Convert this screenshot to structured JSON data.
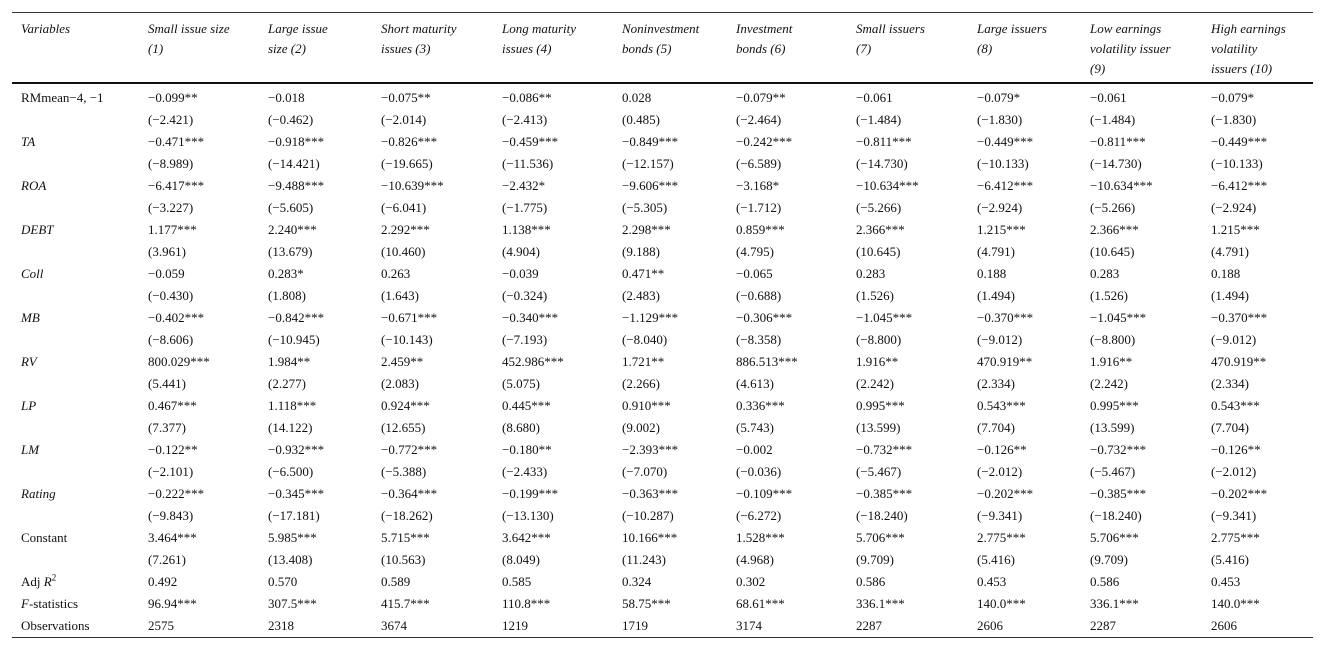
{
  "table": {
    "headers": [
      [
        "Variables"
      ],
      [
        "Small issue size",
        "(1)"
      ],
      [
        "Large issue",
        "size (2)"
      ],
      [
        "Short maturity",
        "issues (3)"
      ],
      [
        "Long maturity",
        "issues (4)"
      ],
      [
        "Noninvestment",
        "bonds (5)"
      ],
      [
        "Investment",
        "bonds (6)"
      ],
      [
        "Small issuers",
        "(7)"
      ],
      [
        "Large issuers",
        "(8)"
      ],
      [
        "Low earnings",
        "volatility issuer",
        "(9)"
      ],
      [
        "High earnings",
        "volatility",
        "issuers (10)"
      ]
    ],
    "rows": [
      {
        "variable": [
          {
            "text": "RMmean−4, −1"
          }
        ],
        "values": [
          "−0.099**",
          "−0.018",
          "−0.075**",
          "−0.086**",
          "0.028",
          "−0.079**",
          "−0.061",
          "−0.079*",
          "−0.061",
          "−0.079*"
        ],
        "tstats": [
          "(−2.421)",
          "(−0.462)",
          "(−2.014)",
          "(−2.413)",
          "(0.485)",
          "(−2.464)",
          "(−1.484)",
          "(−1.830)",
          "(−1.484)",
          "(−1.830)"
        ]
      },
      {
        "variable": [
          {
            "text": "TA",
            "style": "italic"
          }
        ],
        "values": [
          "−0.471***",
          "−0.918***",
          "−0.826***",
          "−0.459***",
          "−0.849***",
          "−0.242***",
          "−0.811***",
          "−0.449***",
          "−0.811***",
          "−0.449***"
        ],
        "tstats": [
          "(−8.989)",
          "(−14.421)",
          "(−19.665)",
          "(−11.536)",
          "(−12.157)",
          "(−6.589)",
          "(−14.730)",
          "(−10.133)",
          "(−14.730)",
          "(−10.133)"
        ]
      },
      {
        "variable": [
          {
            "text": "ROA",
            "style": "italic"
          }
        ],
        "values": [
          "−6.417***",
          "−9.488***",
          "−10.639***",
          "−2.432*",
          "−9.606***",
          "−3.168*",
          "−10.634***",
          "−6.412***",
          "−10.634***",
          "−6.412***"
        ],
        "tstats": [
          "(−3.227)",
          "(−5.605)",
          "(−6.041)",
          "(−1.775)",
          "(−5.305)",
          "(−1.712)",
          "(−5.266)",
          "(−2.924)",
          "(−5.266)",
          "(−2.924)"
        ]
      },
      {
        "variable": [
          {
            "text": "DEBT",
            "style": "italic"
          }
        ],
        "values": [
          "1.177***",
          "2.240***",
          "2.292***",
          "1.138***",
          "2.298***",
          "0.859***",
          "2.366***",
          "1.215***",
          "2.366***",
          "1.215***"
        ],
        "tstats": [
          "(3.961)",
          "(13.679)",
          "(10.460)",
          "(4.904)",
          "(9.188)",
          "(4.795)",
          "(10.645)",
          "(4.791)",
          "(10.645)",
          "(4.791)"
        ]
      },
      {
        "variable": [
          {
            "text": "Coll",
            "style": "italic"
          }
        ],
        "values": [
          "−0.059",
          "0.283*",
          "0.263",
          "−0.039",
          "0.471**",
          "−0.065",
          "0.283",
          "0.188",
          "0.283",
          "0.188"
        ],
        "tstats": [
          "(−0.430)",
          "(1.808)",
          "(1.643)",
          "(−0.324)",
          "(2.483)",
          "(−0.688)",
          "(1.526)",
          "(1.494)",
          "(1.526)",
          "(1.494)"
        ]
      },
      {
        "variable": [
          {
            "text": "MB",
            "style": "italic"
          }
        ],
        "values": [
          "−0.402***",
          "−0.842***",
          "−0.671***",
          "−0.340***",
          "−1.129***",
          "−0.306***",
          "−1.045***",
          "−0.370***",
          "−1.045***",
          "−0.370***"
        ],
        "tstats": [
          "(−8.606)",
          "(−10.945)",
          "(−10.143)",
          "(−7.193)",
          "(−8.040)",
          "(−8.358)",
          "(−8.800)",
          "(−9.012)",
          "(−8.800)",
          "(−9.012)"
        ]
      },
      {
        "variable": [
          {
            "text": "RV",
            "style": "italic"
          }
        ],
        "values": [
          "800.029***",
          "1.984**",
          "2.459**",
          "452.986***",
          "1.721**",
          "886.513***",
          "1.916**",
          "470.919**",
          "1.916**",
          "470.919**"
        ],
        "tstats": [
          "(5.441)",
          "(2.277)",
          "(2.083)",
          "(5.075)",
          "(2.266)",
          "(4.613)",
          "(2.242)",
          "(2.334)",
          "(2.242)",
          "(2.334)"
        ]
      },
      {
        "variable": [
          {
            "text": "LP",
            "style": "italic"
          }
        ],
        "values": [
          "0.467***",
          "1.118***",
          "0.924***",
          "0.445***",
          "0.910***",
          "0.336***",
          "0.995***",
          "0.543***",
          "0.995***",
          "0.543***"
        ],
        "tstats": [
          "(7.377)",
          "(14.122)",
          "(12.655)",
          "(8.680)",
          "(9.002)",
          "(5.743)",
          "(13.599)",
          "(7.704)",
          "(13.599)",
          "(7.704)"
        ]
      },
      {
        "variable": [
          {
            "text": "LM",
            "style": "italic"
          }
        ],
        "values": [
          "−0.122**",
          "−0.932***",
          "−0.772***",
          "−0.180**",
          "−2.393***",
          "−0.002",
          "−0.732***",
          "−0.126**",
          "−0.732***",
          "−0.126**"
        ],
        "tstats": [
          "(−2.101)",
          "(−6.500)",
          "(−5.388)",
          "(−2.433)",
          "(−7.070)",
          "(−0.036)",
          "(−5.467)",
          "(−2.012)",
          "(−5.467)",
          "(−2.012)"
        ]
      },
      {
        "variable": [
          {
            "text": "Rating",
            "style": "italic"
          }
        ],
        "values": [
          "−0.222***",
          "−0.345***",
          "−0.364***",
          "−0.199***",
          "−0.363***",
          "−0.109***",
          "−0.385***",
          "−0.202***",
          "−0.385***",
          "−0.202***"
        ],
        "tstats": [
          "(−9.843)",
          "(−17.181)",
          "(−18.262)",
          "(−13.130)",
          "(−10.287)",
          "(−6.272)",
          "(−18.240)",
          "(−9.341)",
          "(−18.240)",
          "(−9.341)"
        ]
      },
      {
        "variable": [
          {
            "text": "Constant"
          }
        ],
        "values": [
          "3.464***",
          "5.985***",
          "5.715***",
          "3.642***",
          "10.166***",
          "1.528***",
          "5.706***",
          "2.775***",
          "5.706***",
          "2.775***"
        ],
        "tstats": [
          "(7.261)",
          "(13.408)",
          "(10.563)",
          "(8.049)",
          "(11.243)",
          "(4.968)",
          "(9.709)",
          "(5.416)",
          "(9.709)",
          "(5.416)"
        ]
      },
      {
        "variable": [
          {
            "text": "Adj "
          },
          {
            "text": "R",
            "style": "italic"
          },
          {
            "text": "2",
            "style": "sup"
          }
        ],
        "values": [
          "0.492",
          "0.570",
          "0.589",
          "0.585",
          "0.324",
          "0.302",
          "0.586",
          "0.453",
          "0.586",
          "0.453"
        ]
      },
      {
        "variable": [
          {
            "text": "F",
            "style": "italic"
          },
          {
            "text": "-statistics"
          }
        ],
        "values": [
          "96.94***",
          "307.5***",
          "415.7***",
          "110.8***",
          "58.75***",
          "68.61***",
          "336.1***",
          "140.0***",
          "336.1***",
          "140.0***"
        ]
      },
      {
        "variable": [
          {
            "text": "Observations"
          }
        ],
        "values": [
          "2575",
          "2318",
          "3674",
          "1219",
          "1719",
          "3174",
          "2287",
          "2606",
          "2287",
          "2606"
        ]
      }
    ]
  }
}
